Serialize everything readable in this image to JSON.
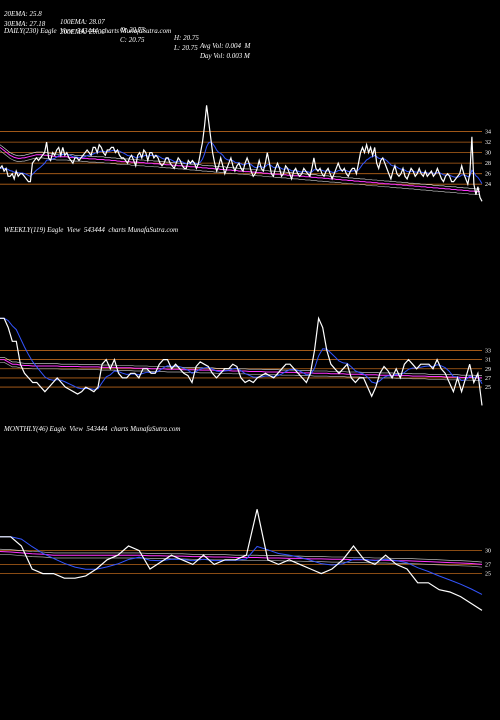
{
  "header": {
    "row1": [
      "20EMA: 25.8",
      "100EMA: 28.07",
      "O: 20.75",
      "H: 20.75",
      "Avg Vol: 0.004  M"
    ],
    "row2": [
      "30EMA: 27.18",
      "200EMA: 29.06",
      "C: 20.75",
      "L: 20.75",
      "Day Vol: 0.003 M"
    ]
  },
  "panels": {
    "daily_title": "DAILY(230) Eagle  View  543444  charts MunafaSutra.com",
    "weekly_title": "WEEKLY(119) Eagle  View  543444  charts MunafaSutra.com",
    "monthly_title": "MONTHLY(46) Eagle  View  543444  charts MunafaSutra.com"
  },
  "colors": {
    "background": "#000000",
    "price": "#ffffff",
    "level_lines": "#b8651b",
    "ema_magenta": "#ff33ff",
    "ema_blue": "#3355ff",
    "ema_grey": "#aaaaaa",
    "ema_white": "#dddddd"
  },
  "chart_data": [
    {
      "type": "line",
      "title": "DAILY(230) Eagle  View  543444  charts MunafaSutra.com",
      "x": "daily bars 1..230",
      "yticks": [
        34,
        32,
        30,
        28,
        26,
        24
      ],
      "ylim": [
        21,
        40
      ],
      "series": [
        {
          "values": [
            27,
            27.5,
            26.5,
            27,
            25.5,
            25.5,
            26,
            25,
            26.5,
            25.5,
            26,
            26,
            25.5,
            25,
            24.5,
            24.5,
            28,
            28.5,
            29,
            28.5,
            29,
            29.5,
            30,
            32,
            29,
            28.5,
            30,
            29.5,
            30.5,
            31,
            29.5,
            31,
            29.5,
            30,
            29,
            28.5,
            28,
            29,
            29,
            28.5,
            29,
            29.5,
            30,
            30.5,
            30,
            29.5,
            31,
            31,
            30,
            31.5,
            31,
            30,
            29.5,
            30.5,
            30.5,
            31,
            31,
            30,
            30.5,
            29.5,
            29,
            29,
            28.5,
            28,
            29,
            29.5,
            28.5,
            27.5,
            29.5,
            30,
            29,
            30.5,
            30,
            28.5,
            30,
            30,
            29,
            29.5,
            29,
            28,
            27.5,
            28,
            29,
            29,
            28,
            27.5,
            27,
            28,
            29,
            28.5,
            27.5,
            27,
            27,
            28.5,
            28,
            28.5,
            28,
            27,
            28,
            30,
            32,
            35,
            39,
            36,
            33,
            30,
            28,
            26.5,
            27.5,
            29,
            27.5,
            26,
            27,
            28,
            29,
            27.5,
            26.5,
            27.5,
            28,
            27,
            26.5,
            28,
            29,
            28,
            26.5,
            25.5,
            26,
            27,
            28.5,
            27,
            26.5,
            28,
            30,
            28,
            26,
            25.5,
            27,
            28,
            27,
            25.5,
            26,
            27.5,
            27,
            26,
            25,
            26.5,
            27,
            26,
            25.5,
            26,
            27,
            26.5,
            26,
            25.5,
            27,
            29,
            27,
            26.5,
            27,
            26,
            25.5,
            26.5,
            27,
            26,
            25,
            26,
            27,
            28,
            27,
            26.5,
            27,
            26,
            25.5,
            26.5,
            27,
            27,
            26,
            28,
            30,
            31,
            30,
            31.5,
            30,
            31,
            29.5,
            31,
            28,
            27,
            28.5,
            29,
            28,
            27,
            26,
            25,
            26.5,
            27.5,
            26,
            25.5,
            26,
            27,
            25.5,
            25,
            26,
            27,
            26.5,
            25.5,
            26,
            27,
            26,
            25.5,
            26.5,
            25.5,
            26,
            26.5,
            25.5,
            26,
            27,
            26,
            25,
            24.5,
            25.5,
            26,
            25.5,
            24.5,
            24.5,
            25,
            25.5,
            26,
            27.5,
            26,
            25,
            24,
            26,
            33,
            24,
            22,
            23.5,
            21.5,
            20.75
          ]
        },
        {
          "values": [
            31,
            30.7,
            30.4,
            30.1,
            29.8,
            29.5,
            29.3,
            29.1,
            29,
            28.9,
            28.9,
            29,
            29,
            29.1,
            29.2,
            29.3,
            29.4,
            29.5,
            29.6,
            29.6,
            29.6,
            29.6,
            29.5,
            29.5,
            29.4,
            29.4,
            29.3,
            29.3,
            29.2,
            29.2,
            29.2,
            29.2,
            29.2,
            29.2,
            29.1,
            29.1,
            29.1,
            29,
            29,
            29,
            29,
            28.9,
            28.9,
            28.9,
            28.8,
            28.8,
            28.8,
            28.8,
            28.7,
            28.7,
            28.7,
            28.7,
            28.6,
            28.6,
            28.6,
            28.5,
            28.5,
            28.5,
            28.4,
            28.4,
            28.3,
            28.3,
            28.3,
            28.3,
            28.3,
            28.2,
            28.2,
            28.2,
            28.2,
            28.1,
            28.1,
            28.1,
            28,
            28,
            28,
            28,
            27.9,
            27.9,
            27.9,
            27.8,
            27.8,
            27.8,
            27.7,
            27.7,
            27.7,
            27.6,
            27.6,
            27.6,
            27.5,
            27.5,
            27.5,
            27.4,
            27.4,
            27.4,
            27.3,
            27.3,
            27.3,
            27.2,
            27.2,
            27.2,
            27.1,
            27.1,
            27.1,
            27,
            27,
            27,
            26.9,
            26.9,
            26.9,
            26.8,
            26.8,
            26.8,
            26.7,
            26.7,
            26.7,
            26.6,
            26.6,
            26.6,
            26.5,
            26.5,
            26.5,
            26.4,
            26.4,
            26.4,
            26.3,
            26.3,
            26.3,
            26.2,
            26.2,
            26.2,
            26.1,
            26.1,
            26.1,
            26,
            26,
            26,
            25.9,
            25.9,
            25.9,
            25.8,
            25.8,
            25.8,
            25.7,
            25.7,
            25.7,
            25.6,
            25.6,
            25.6,
            25.5,
            25.5,
            25.5,
            25.4,
            25.4,
            25.4,
            25.3,
            25.3,
            25.3,
            25.2,
            25.2,
            25.2,
            25.1,
            25.1,
            25.1,
            25,
            25,
            25,
            24.9,
            24.9,
            24.9,
            24.8,
            24.8,
            24.8,
            24.7,
            24.7,
            24.7,
            24.6,
            24.6,
            24.6,
            24.5,
            24.5,
            24.5,
            24.4,
            24.4,
            24.4,
            24.3,
            24.3,
            24.3,
            24.2,
            24.2,
            24.2,
            24.1,
            24.1,
            24.1,
            24,
            24,
            24,
            23.9,
            23.9,
            23.9,
            23.8,
            23.8,
            23.8,
            23.7,
            23.7,
            23.7,
            23.6,
            23.6,
            23.6,
            23.5,
            23.5,
            23.5,
            23.4,
            23.4,
            23.4,
            23.3,
            23.3,
            23.3,
            23.2,
            23.2,
            23.2,
            23.1,
            23.1,
            23.1,
            23,
            23,
            23,
            22.9,
            22.9,
            22.9,
            22.8,
            22.8,
            22.8,
            22.7,
            22.7,
            22.7,
            22.6,
            22.6,
            22.6
          ]
        }
      ]
    },
    {
      "type": "line",
      "title": "WEEKLY(119) Eagle  View  543444  charts MunafaSutra.com",
      "x": "weekly bars 1..119",
      "yticks": [
        33,
        31,
        29,
        27,
        25
      ],
      "ylim": [
        20,
        44
      ],
      "series": [
        {
          "values": [
            40,
            40,
            38,
            35,
            35,
            30,
            28,
            27,
            26,
            26,
            25,
            24,
            25,
            26,
            27,
            26,
            25,
            24.5,
            24,
            23.5,
            24,
            25,
            24.5,
            24,
            25,
            30,
            31,
            29,
            31,
            28,
            27,
            27,
            28,
            28,
            27,
            29,
            29,
            28,
            28,
            30,
            31,
            31,
            29,
            30,
            29,
            28,
            27.5,
            26,
            29.5,
            30.5,
            30,
            29.5,
            28,
            27,
            28,
            29,
            29,
            30,
            29.5,
            27,
            26,
            26.5,
            26,
            27,
            27.5,
            28,
            27.5,
            27,
            28,
            29,
            30,
            30,
            29,
            28,
            27,
            26,
            28,
            33,
            40,
            38,
            33,
            30,
            29,
            28,
            29,
            30,
            27,
            26,
            27,
            27,
            25,
            23,
            25,
            28,
            29.5,
            28.5,
            27,
            29,
            27,
            30,
            31,
            30,
            29,
            30,
            30,
            30,
            29,
            31,
            29,
            28,
            26,
            24,
            27,
            24,
            27,
            30,
            26,
            28,
            21
          ]
        },
        {
          "values": [
            31,
            31,
            30.5,
            30,
            30,
            29.8,
            29.7,
            29.7,
            29.6,
            29.6,
            29.6,
            29.6,
            29.6,
            29.6,
            29.6,
            29.5,
            29.5,
            29.5,
            29.5,
            29.5,
            29.4,
            29.4,
            29.4,
            29.4,
            29.4,
            29.3,
            29.3,
            29.3,
            29.3,
            29.2,
            29.2,
            29.2,
            29.2,
            29.1,
            29.1,
            29.1,
            29.1,
            29,
            29,
            29,
            29,
            28.9,
            28.9,
            28.9,
            28.9,
            28.8,
            28.8,
            28.8,
            28.8,
            28.7,
            28.7,
            28.7,
            28.7,
            28.6,
            28.6,
            28.6,
            28.6,
            28.5,
            28.5,
            28.5,
            28.5,
            28.4,
            28.4,
            28.4,
            28.4,
            28.3,
            28.3,
            28.3,
            28.3,
            28.2,
            28.2,
            28.2,
            28.2,
            28.1,
            28.1,
            28.1,
            28.1,
            28,
            28,
            28,
            28,
            27.9,
            27.9,
            27.9,
            27.9,
            27.8,
            27.8,
            27.8,
            27.8,
            27.7,
            27.7,
            27.7,
            27.7,
            27.6,
            27.6,
            27.6,
            27.6,
            27.5,
            27.5,
            27.5,
            27.5,
            27.4,
            27.4,
            27.4,
            27.4,
            27.3,
            27.3,
            27.3,
            27.3,
            27.2,
            27.2,
            27.2,
            27.2,
            27.1,
            27.1,
            27.1,
            27.1,
            27,
            27
          ]
        }
      ]
    },
    {
      "type": "line",
      "title": "MONTHLY(46) Eagle  View  543444  charts MunafaSutra.com",
      "x": "monthly bars 1..46",
      "yticks": [
        30,
        27,
        25
      ],
      "ylim": [
        16,
        41
      ],
      "series": [
        {
          "values": [
            33,
            33,
            31,
            26,
            25,
            25,
            24,
            24,
            24.5,
            26,
            28,
            29,
            31,
            30,
            26,
            27.5,
            29,
            28,
            27,
            29,
            27,
            28,
            28,
            29,
            39,
            28,
            27,
            28,
            27,
            26,
            25,
            26,
            28,
            31,
            28,
            27,
            29,
            27,
            26,
            23,
            23,
            21.5,
            21,
            20,
            18.5,
            17
          ]
        },
        {
          "values": [
            29.8,
            29.7,
            29.5,
            29.3,
            29.2,
            29,
            29,
            29,
            29,
            29,
            29,
            29,
            29,
            29,
            28.9,
            28.9,
            28.8,
            28.8,
            28.7,
            28.7,
            28.6,
            28.6,
            28.5,
            28.5,
            28.5,
            28.4,
            28.4,
            28.3,
            28.3,
            28.2,
            28.2,
            28.1,
            28.1,
            28,
            28,
            27.9,
            27.9,
            27.8,
            27.8,
            27.7,
            27.6,
            27.5,
            27.4,
            27.3,
            27.2,
            27
          ]
        }
      ]
    }
  ]
}
